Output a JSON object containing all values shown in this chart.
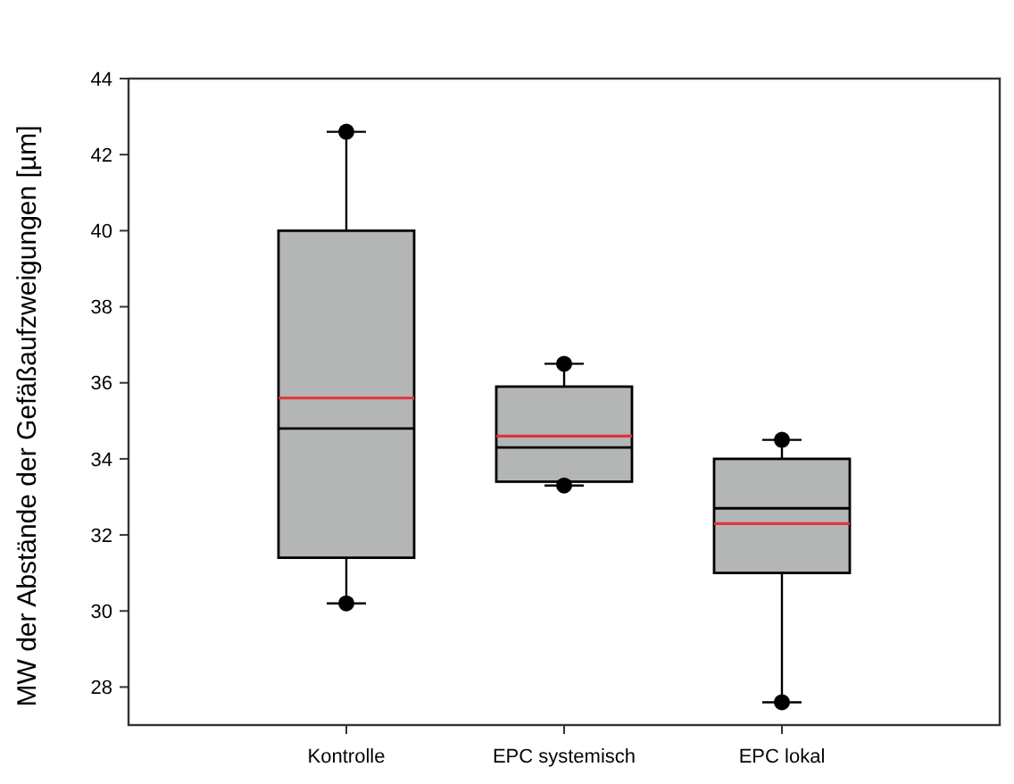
{
  "chart_data": {
    "type": "box",
    "ylabel": "MW der Abstände der Gefäßaufzweigungen [µm]",
    "categories": [
      "Kontrolle",
      "EPC systemisch",
      "EPC lokal"
    ],
    "color": "#b4b6b6",
    "ylim": [
      27,
      44
    ],
    "yticks": [
      28,
      30,
      32,
      34,
      36,
      38,
      40,
      42,
      44
    ],
    "boxes": [
      {
        "low": 30.2,
        "q1": 31.4,
        "median": 34.8,
        "q3": 40,
        "high": 42.6,
        "mean": 35.6,
        "outliers": [
          30.2,
          42.6
        ]
      },
      {
        "low": 33.3,
        "q1": 33.4,
        "median": 34.3,
        "q3": 35.9,
        "high": 36.5,
        "mean": 34.6,
        "outliers": [
          33.3,
          36.5
        ]
      },
      {
        "low": 27.6,
        "q1": 31,
        "median": 32.7,
        "q3": 34,
        "high": 34.5,
        "mean": 32.3,
        "outliers": [
          27.6,
          34.5
        ]
      }
    ]
  }
}
